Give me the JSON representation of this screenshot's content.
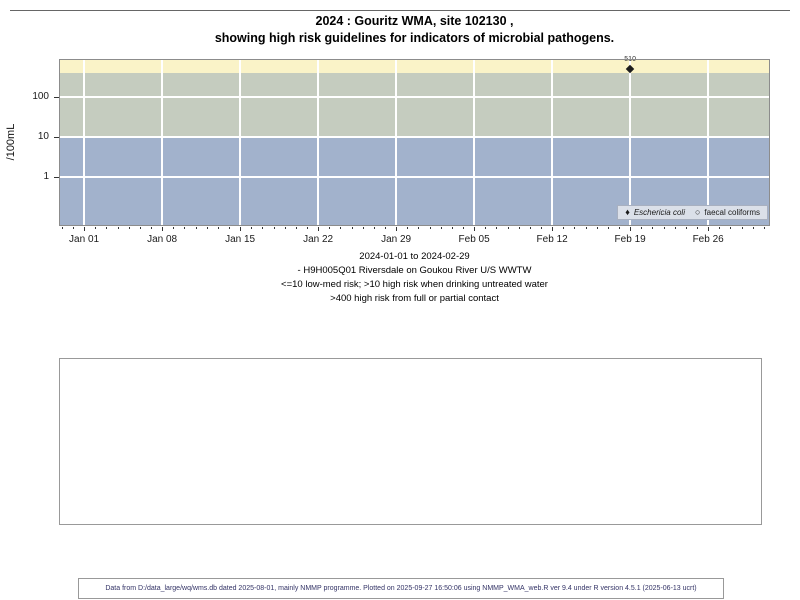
{
  "title": {
    "line1": "2024 : Gouritz WMA, site 102130 ,",
    "line2": "showing high risk guidelines for indicators of microbial pathogens."
  },
  "chart_data": {
    "type": "scatter",
    "title": "2024 : Gouritz WMA, site 102130 , showing high risk guidelines for indicators of microbial pathogens.",
    "xlabel": "",
    "ylabel": "/100mL",
    "y_scale": "log10",
    "ylim": [
      0.0595,
      891
    ],
    "y_ticks": [
      1,
      10,
      100
    ],
    "x_unit": "days since 2024-01-01",
    "xlim_days": [
      -2.25,
      61.55
    ],
    "x_major_ticks": [
      {
        "day": 0,
        "label": "Jan 01"
      },
      {
        "day": 7,
        "label": "Jan 08"
      },
      {
        "day": 14,
        "label": "Jan 15"
      },
      {
        "day": 21,
        "label": "Jan 22"
      },
      {
        "day": 28,
        "label": "Jan 29"
      },
      {
        "day": 35,
        "label": "Feb 05"
      },
      {
        "day": 42,
        "label": "Feb 12"
      },
      {
        "day": 49,
        "label": "Feb 19"
      },
      {
        "day": 56,
        "label": "Feb 26"
      }
    ],
    "x_minor_tick_every_days": 1,
    "grid": true,
    "gridline_color": "#ffffff",
    "risk_bands": [
      {
        "name": ">400 high risk from full or partial contact",
        "from": 400,
        "to": 891,
        "color": "#faf3c8"
      },
      {
        "name": ">10 high risk when drinking untreated water",
        "from": 10,
        "to": 400,
        "color": "#c5ccbf"
      },
      {
        "name": "<=10 low-med risk",
        "from": 0.0595,
        "to": 10,
        "color": "#a2b2cc"
      }
    ],
    "series": [
      {
        "name": "Eschericia coli",
        "marker": "filled-diamond",
        "color": "#1c1c1c",
        "points": [
          {
            "day": 49,
            "date": "2024-02-19",
            "value": 510,
            "label": "510"
          }
        ]
      },
      {
        "name": "faecal coliforms",
        "marker": "open-circle",
        "color": "#1c1c1c",
        "points": []
      }
    ],
    "legend": {
      "position": "bottom-right",
      "items": [
        {
          "label": "Eschericia coli",
          "marker": "filled-diamond",
          "italic": true
        },
        {
          "label": "faecal coliforms",
          "marker": "open-circle",
          "italic": false
        }
      ]
    }
  },
  "caption": {
    "lines": [
      "2024-01-01 to 2024-02-29",
      "- H9H005Q01 Riversdale on Goukou River U/S WWTW",
      "<=10 low-med risk; >10 high risk when drinking untreated water",
      ">400 high risk from full or partial contact"
    ]
  },
  "footer": {
    "text": "Data from D:/data_large/wq/wms.db dated 2025-08-01, mainly NMMP programme. Plotted on 2025-09-27 16:50:06 using NMMP_WMA_web.R ver 9.4 under R version 4.5.1 (2025-06-13 ucrt)"
  }
}
